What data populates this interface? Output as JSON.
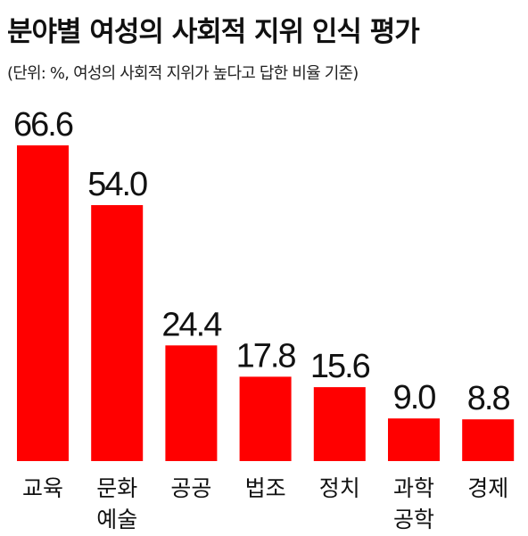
{
  "chart_data": {
    "type": "bar",
    "title": "분야별 여성의 사회적 지위 인식 평가",
    "subtitle": "(단위: %, 여성의 사회적 지위가 높다고 답한 비율 기준)",
    "categories": [
      [
        "교육"
      ],
      [
        "문화",
        "예술"
      ],
      [
        "공공"
      ],
      [
        "법조"
      ],
      [
        "정치"
      ],
      [
        "과학",
        "공학"
      ],
      [
        "경제"
      ]
    ],
    "values": [
      66.6,
      54.0,
      24.4,
      17.8,
      15.6,
      9.0,
      8.8
    ],
    "value_labels": [
      "66.6",
      "54.0",
      "24.4",
      "17.8",
      "15.6",
      "9.0",
      "8.8"
    ],
    "ylim": [
      0,
      66.6
    ],
    "xlabel": "",
    "ylabel": "",
    "grid": false,
    "bar_color": "#ff0000"
  }
}
